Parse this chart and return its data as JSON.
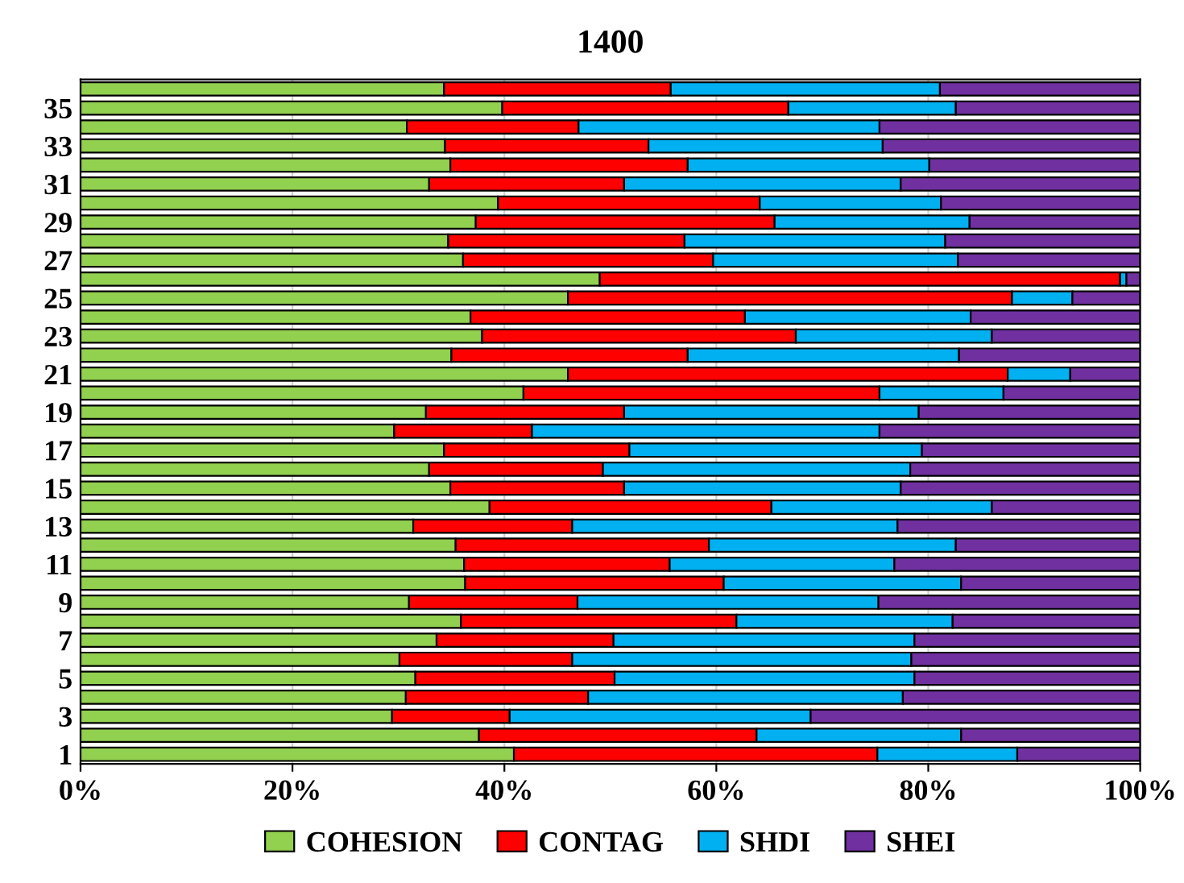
{
  "chart_data": {
    "type": "bar",
    "title": "1400",
    "orientation": "horizontal",
    "stacked": true,
    "grid": "x",
    "legend": "bottom",
    "categories": [
      null,
      "35",
      null,
      "33",
      null,
      "31",
      null,
      "29",
      null,
      "27",
      null,
      "25",
      null,
      "23",
      null,
      "21",
      null,
      "19",
      null,
      "17",
      null,
      "15",
      null,
      "13",
      null,
      "11",
      null,
      "9",
      null,
      "7",
      null,
      "5",
      null,
      "3",
      null,
      "1"
    ],
    "xlim": [
      0,
      100
    ],
    "xticks": [
      {
        "value": 0,
        "label": "0%"
      },
      {
        "value": 20,
        "label": "20%"
      },
      {
        "value": 40,
        "label": "40%"
      },
      {
        "value": 60,
        "label": "60%"
      },
      {
        "value": 80,
        "label": "80%"
      },
      {
        "value": 100,
        "label": "100%"
      }
    ],
    "series": [
      {
        "name": "COHESION",
        "color": "#92d050",
        "values": [
          34.3,
          39.8,
          30.8,
          34.4,
          34.9,
          32.9,
          39.4,
          37.3,
          34.7,
          36.1,
          49.0,
          46.0,
          36.8,
          37.9,
          35.0,
          46.0,
          41.8,
          32.6,
          29.6,
          34.3,
          32.9,
          34.9,
          38.6,
          31.4,
          35.4,
          36.2,
          36.3,
          31.0,
          35.9,
          33.6,
          30.1,
          31.6,
          30.7,
          29.4,
          37.6,
          40.9
        ]
      },
      {
        "name": "CONTAG",
        "color": "#ff0000",
        "values": [
          21.4,
          27.0,
          16.2,
          19.2,
          22.4,
          18.4,
          24.7,
          28.2,
          22.3,
          23.6,
          49.1,
          41.9,
          25.9,
          29.6,
          22.3,
          41.5,
          33.6,
          18.7,
          13.0,
          17.5,
          16.4,
          16.4,
          26.6,
          15.0,
          23.9,
          19.4,
          24.4,
          15.9,
          26.0,
          16.7,
          16.3,
          18.8,
          17.2,
          11.1,
          26.2,
          34.3
        ]
      },
      {
        "name": "SHDI",
        "color": "#00b0f0",
        "values": [
          25.4,
          15.8,
          28.4,
          22.1,
          22.8,
          26.1,
          17.1,
          18.4,
          24.6,
          23.1,
          0.6,
          5.7,
          21.3,
          18.5,
          25.6,
          5.9,
          11.7,
          27.8,
          32.8,
          27.6,
          29.0,
          26.1,
          20.8,
          30.7,
          23.3,
          21.2,
          22.4,
          28.4,
          20.4,
          28.4,
          32.0,
          28.3,
          29.7,
          28.4,
          19.3,
          13.2
        ]
      },
      {
        "name": "SHEI",
        "color": "#7030a0",
        "values": [
          18.9,
          17.4,
          24.6,
          24.3,
          19.9,
          22.6,
          18.8,
          16.1,
          18.4,
          17.2,
          1.3,
          6.4,
          16.0,
          14.0,
          17.1,
          6.6,
          12.9,
          20.9,
          24.6,
          20.6,
          21.7,
          22.6,
          14.0,
          22.9,
          17.4,
          23.2,
          16.9,
          24.7,
          17.7,
          21.3,
          21.6,
          21.3,
          22.4,
          31.1,
          16.9,
          11.6
        ]
      }
    ]
  }
}
